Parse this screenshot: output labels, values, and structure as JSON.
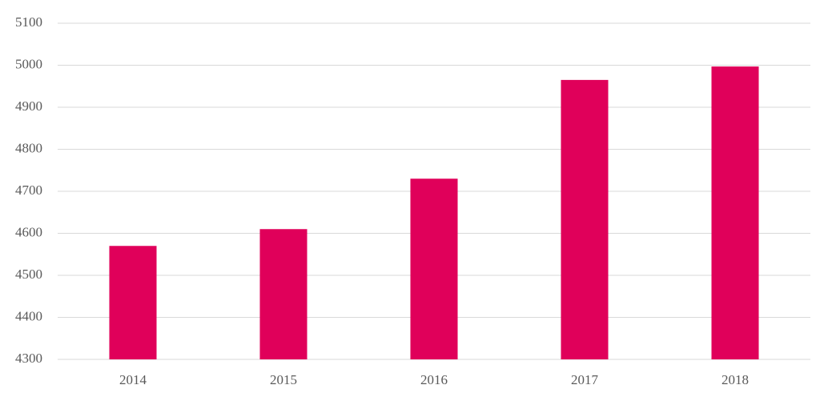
{
  "chart_data": {
    "type": "bar",
    "categories": [
      "2014",
      "2015",
      "2016",
      "2017",
      "2018"
    ],
    "values": [
      4570,
      4610,
      4730,
      4965,
      4997
    ],
    "color": "#e0005a",
    "ylim": [
      4300,
      5100
    ],
    "yticks": [
      4300,
      4400,
      4500,
      4600,
      4700,
      4800,
      4900,
      5000,
      5100
    ],
    "grid": true
  }
}
